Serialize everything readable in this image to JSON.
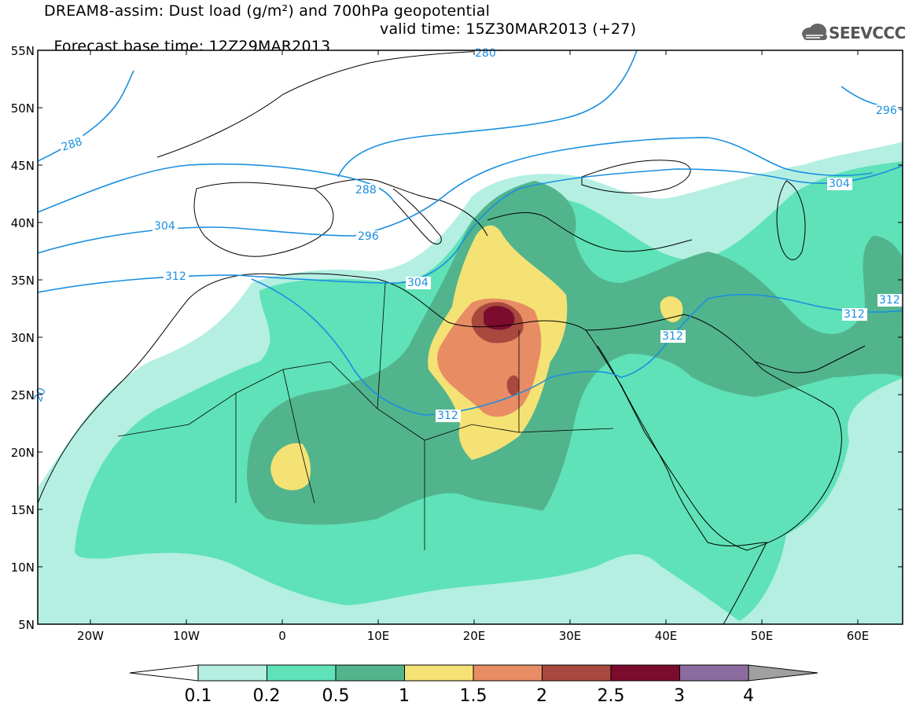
{
  "header": {
    "title_line1": "DREAM8-assim: Dust load (g/m²) and 700hPa geopotential",
    "base_time": "Forecast base time: 12Z29MAR2013",
    "valid_time": "valid time: 15Z30MAR2013 (+27)"
  },
  "logo": {
    "text": "SEEVCCC",
    "icon": "cloud-icon"
  },
  "axes": {
    "lat_labels": [
      "55N",
      "50N",
      "45N",
      "40N",
      "35N",
      "30N",
      "25N",
      "20N",
      "15N",
      "10N",
      "5N"
    ],
    "lon_labels": [
      "20W",
      "10W",
      "0",
      "10E",
      "20E",
      "30E",
      "40E",
      "50E",
      "60E"
    ]
  },
  "contour_labels": [
    "288",
    "288",
    "296",
    "304",
    "304",
    "312",
    "312",
    "312",
    "312",
    "312",
    "296",
    "304",
    "280",
    "20"
  ],
  "colorbar": {
    "ticks": [
      "0.1",
      "0.2",
      "0.5",
      "1",
      "1.5",
      "2",
      "2.5",
      "3",
      "4"
    ],
    "colors": [
      "#b4efe2",
      "#5fe2b8",
      "#52b48d",
      "#f4e274",
      "#e88c64",
      "#a9483e",
      "#7c0c2e",
      "#8c6ca0"
    ],
    "under_color": "#ffffff",
    "over_color": "#a0a0a0"
  },
  "map_colors": {
    "contour": "#1a8fe0",
    "coast": "#000000"
  }
}
